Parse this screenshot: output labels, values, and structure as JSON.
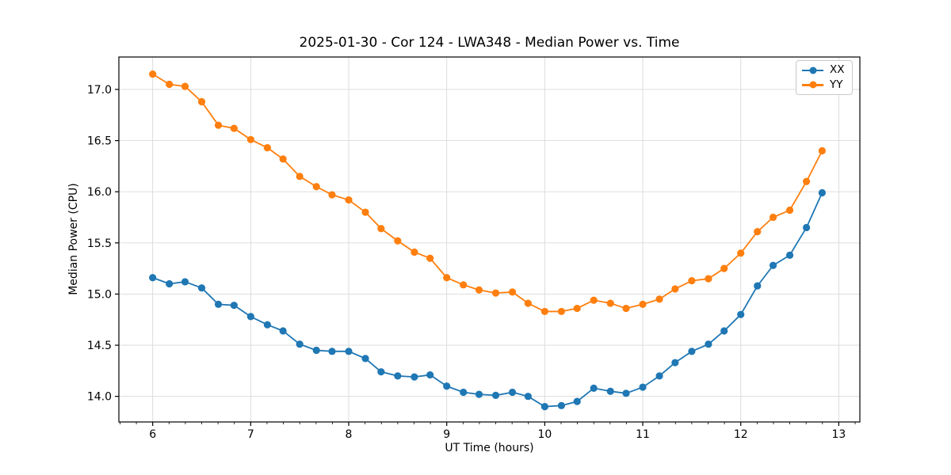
{
  "figure": {
    "title": "2025-01-30 - Cor 124 - LWA348 - Median Power vs. Time",
    "xlabel": "UT Time (hours)",
    "ylabel": "Median Power (CPU)"
  },
  "legend": {
    "items": [
      {
        "label": "XX",
        "color": "#1f77b4"
      },
      {
        "label": "YY",
        "color": "#ff7f0e"
      }
    ]
  },
  "chart_data": {
    "type": "line",
    "title": "2025-01-30 - Cor 124 - LWA348 - Median Power vs. Time",
    "xlabel": "UT Time (hours)",
    "ylabel": "Median Power (CPU)",
    "x": [
      6.0,
      6.17,
      6.33,
      6.5,
      6.67,
      6.83,
      7.0,
      7.17,
      7.33,
      7.5,
      7.67,
      7.83,
      8.0,
      8.17,
      8.33,
      8.5,
      8.67,
      8.83,
      9.0,
      9.17,
      9.33,
      9.5,
      9.67,
      9.83,
      10.0,
      10.17,
      10.33,
      10.5,
      10.67,
      10.83,
      11.0,
      11.17,
      11.33,
      11.5,
      11.67,
      11.83,
      12.0,
      12.17,
      12.33,
      12.5,
      12.67,
      12.83
    ],
    "series": [
      {
        "name": "XX",
        "color": "#1f77b4",
        "marker": "circle",
        "values": [
          15.16,
          15.1,
          15.12,
          15.06,
          14.9,
          14.89,
          14.78,
          14.7,
          14.64,
          14.51,
          14.45,
          14.44,
          14.44,
          14.37,
          14.24,
          14.2,
          14.19,
          14.21,
          14.1,
          14.04,
          14.02,
          14.01,
          14.04,
          14.0,
          13.9,
          13.91,
          13.95,
          14.08,
          14.05,
          14.03,
          14.09,
          14.2,
          14.33,
          14.44,
          14.51,
          14.64,
          14.8,
          15.08,
          15.28,
          15.38,
          15.65,
          15.99
        ]
      },
      {
        "name": "YY",
        "color": "#ff7f0e",
        "marker": "circle",
        "values": [
          17.15,
          17.05,
          17.03,
          16.88,
          16.65,
          16.62,
          16.51,
          16.43,
          16.32,
          16.15,
          16.05,
          15.97,
          15.92,
          15.8,
          15.64,
          15.52,
          15.41,
          15.35,
          15.16,
          15.09,
          15.04,
          15.01,
          15.02,
          14.91,
          14.83,
          14.83,
          14.86,
          14.94,
          14.91,
          14.86,
          14.9,
          14.95,
          15.05,
          15.13,
          15.15,
          15.25,
          15.4,
          15.61,
          15.75,
          15.82,
          16.1,
          16.4
        ]
      }
    ],
    "xlim": [
      5.655,
      13.215
    ],
    "ylim": [
      13.75,
      17.317
    ],
    "xticks": [
      6,
      7,
      8,
      9,
      10,
      11,
      12,
      13
    ],
    "yticks": [
      14.0,
      14.5,
      15.0,
      15.5,
      16.0,
      16.5,
      17.0
    ],
    "minor_xticks_per_major": 6,
    "grid": true,
    "legend_position": "upper right",
    "colors": {
      "grid": "#d9d9d9",
      "axis": "#000000",
      "background": "#ffffff"
    }
  }
}
